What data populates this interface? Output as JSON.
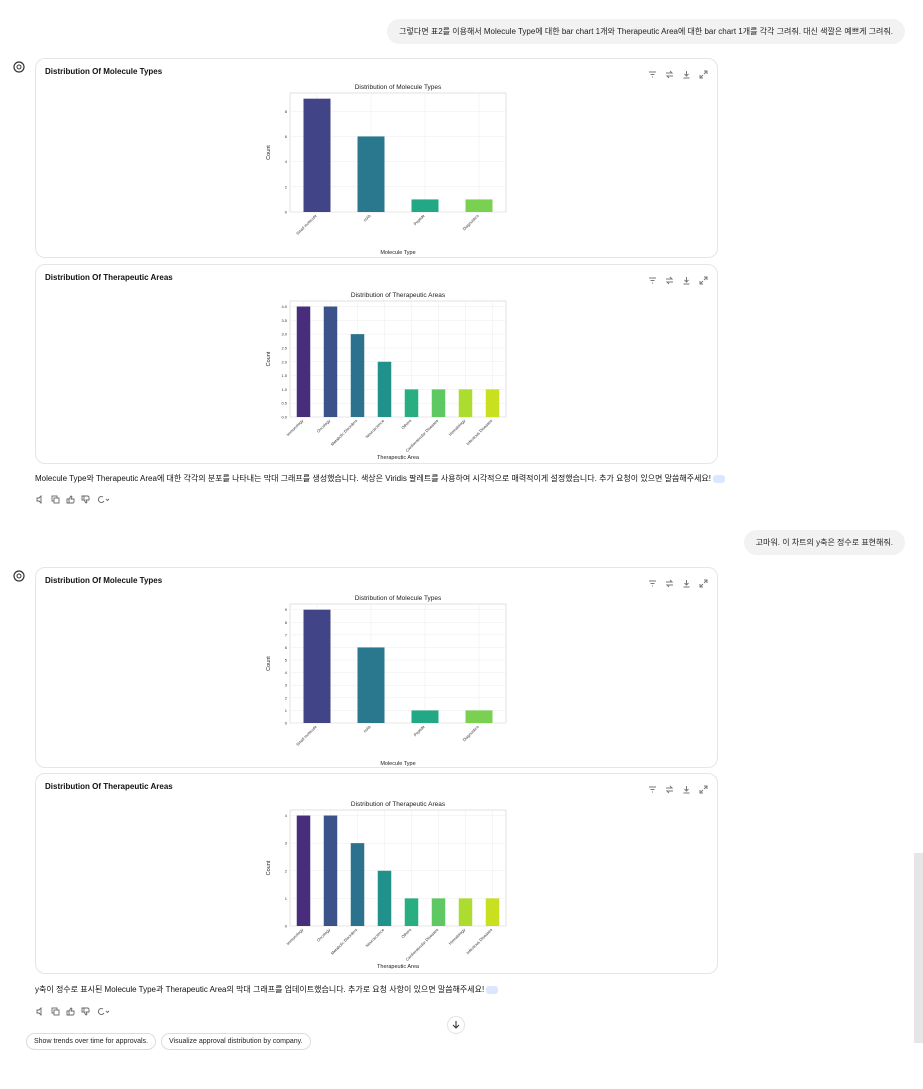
{
  "messages": {
    "user_1": "그렇다면 표2를 이용해서 Molecule Type에 대한 bar chart 1개와 Therapeutic Area에 대한 bar chart 1개를 각각 그려줘. 대신 색깔은 예쁘게 그려줘.",
    "reply_1": "Molecule Type와 Therapeutic Area에 대한 각각의 분포를 나타내는 막대 그래프를 생성했습니다. 색상은 Viridis 팔레트를 사용하여 시각적으로 매력적이게 설정했습니다. 추가 요청이 있으면 말씀해주세요!",
    "user_2": "고마워. 이 차트의 y축은 정수로 표현해줘.",
    "reply_2": "y축이 정수로 표시된 Molecule Type과 Therapeutic Area의 막대 그래프를 업데이트했습니다. 추가로 요청 사항이 있으면 말씀해주세요!"
  },
  "cards": {
    "mol_title": "Distribution Of Molecule Types",
    "ther_title": "Distribution Of Therapeutic Areas"
  },
  "suggestions": [
    "Show trends over time for approvals.",
    "Visualize approval distribution by company."
  ],
  "icons": {
    "assistant": "openai-logo-icon",
    "card_actions": [
      "filter-icon",
      "swap-icon",
      "download-icon",
      "expand-icon"
    ],
    "message_actions": [
      "speaker-icon",
      "copy-icon",
      "thumbs-up-icon",
      "thumbs-down-icon",
      "regenerate-icon"
    ],
    "scroll": "arrow-down-icon"
  },
  "chart_data": [
    {
      "type": "bar",
      "title": "Distribution of Molecule Types",
      "xlabel": "Molecule Type",
      "ylabel": "Count",
      "categories": [
        "Small molecule",
        "mAb",
        "Peptide",
        "Diagnostics"
      ],
      "values": [
        9,
        6,
        1,
        1
      ],
      "ylim": [
        0,
        9.45
      ],
      "yticks": [
        0,
        2,
        4,
        6,
        8
      ],
      "colors": [
        "#414487",
        "#2a788e",
        "#22a884",
        "#7ad151"
      ],
      "grid": true
    },
    {
      "type": "bar",
      "title": "Distribution of Therapeutic Areas",
      "xlabel": "Therapeutic Area",
      "ylabel": "Count",
      "categories": [
        "Immunology",
        "Oncology",
        "Metabolic Disorders",
        "Neuroscience",
        "Others",
        "Cardiovascular Diseases",
        "Hematology",
        "Infectious Diseases"
      ],
      "values": [
        4,
        4,
        3,
        2,
        1,
        1,
        1,
        1
      ],
      "ylim": [
        0,
        4.2
      ],
      "yticks": [
        0,
        0.5,
        1.0,
        1.5,
        2.0,
        2.5,
        3.0,
        3.5,
        4.0
      ],
      "ytick_labels": [
        "0.0",
        "0.5",
        "1.0",
        "1.5",
        "2.0",
        "2.5",
        "3.0",
        "3.5",
        "4.0"
      ],
      "colors": [
        "#472d7b",
        "#3b528b",
        "#2c728e",
        "#21918c",
        "#28ae80",
        "#5ec962",
        "#addc30",
        "#c8e020"
      ],
      "grid": true
    },
    {
      "type": "bar",
      "title": "Distribution of Molecule Types",
      "xlabel": "Molecule Type",
      "ylabel": "Count",
      "categories": [
        "Small molecule",
        "mAb",
        "Peptide",
        "Diagnostics"
      ],
      "values": [
        9,
        6,
        1,
        1
      ],
      "ylim": [
        0,
        9.45
      ],
      "yticks": [
        0,
        1,
        2,
        3,
        4,
        5,
        6,
        7,
        8,
        9
      ],
      "colors": [
        "#414487",
        "#2a788e",
        "#22a884",
        "#7ad151"
      ],
      "grid": true
    },
    {
      "type": "bar",
      "title": "Distribution of Therapeutic Areas",
      "xlabel": "Therapeutic Area",
      "ylabel": "Count",
      "categories": [
        "Immunology",
        "Oncology",
        "Metabolic Disorders",
        "Neuroscience",
        "Others",
        "Cardiovascular Diseases",
        "Hematology",
        "Infectious Diseases"
      ],
      "values": [
        4,
        4,
        3,
        2,
        1,
        1,
        1,
        1
      ],
      "ylim": [
        0,
        4.2
      ],
      "yticks": [
        0,
        1,
        2,
        3,
        4
      ],
      "colors": [
        "#472d7b",
        "#3b528b",
        "#2c728e",
        "#21918c",
        "#28ae80",
        "#5ec962",
        "#addc30",
        "#c8e020"
      ],
      "grid": true
    }
  ]
}
